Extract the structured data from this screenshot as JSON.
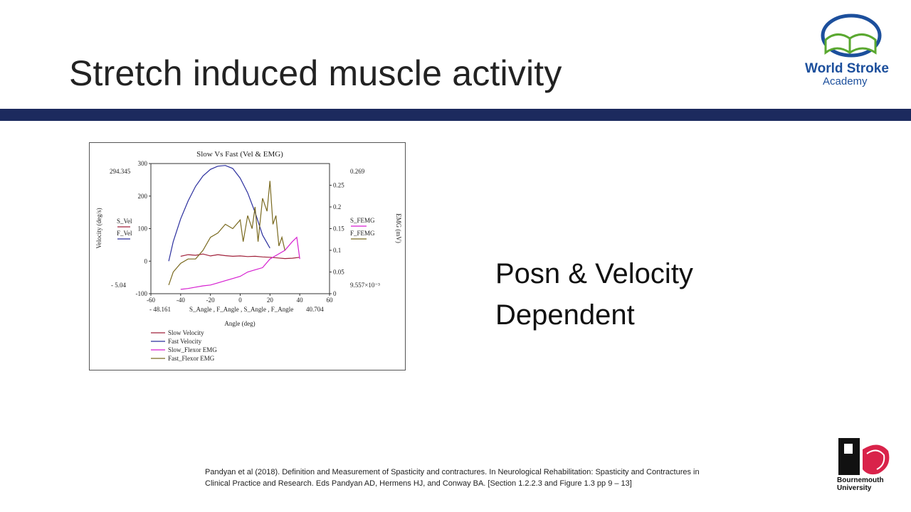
{
  "slide": {
    "title": "Stretch induced muscle activity",
    "side_text_line1": "Posn & Velocity",
    "side_text_line2": "Dependent",
    "citation": "Pandyan et al (2018). Definition and Measurement of Spasticity and contractures. In Neurological Rehabilitation: Spasticity and Contractures in Clinical Practice and Research. Eds Pandyan AD, Hermens HJ, and Conway BA. [Section 1.2.2.3 and Figure 1.3 pp 9 – 13]"
  },
  "logos": {
    "wsa_line1": "World Stroke",
    "wsa_line2": "Academy",
    "bu_line1": "Bournemouth",
    "bu_line2": "University"
  },
  "colors": {
    "divider": "#1c2a5e",
    "slow_velocity": "#a0203a",
    "fast_velocity": "#2b2f9e",
    "slow_emg": "#d61fd0",
    "fast_emg": "#7a6a20"
  },
  "chart_data": {
    "type": "line",
    "title": "Slow Vs Fast (Vel & EMG)",
    "xlabel": "Angle (deg)",
    "x_var_label": "S_Angle , F_Angle , S_Angle , F_Angle",
    "ylabel": "Velocity (deg/s)",
    "y2label": "EMG (mV)",
    "xlim": [
      -60,
      60
    ],
    "ylim": [
      -100,
      300
    ],
    "y2lim": [
      0,
      0.3
    ],
    "xticks": [
      "-60",
      "-40",
      "-20",
      "0",
      "20",
      "40",
      "60"
    ],
    "yticks": [
      "-100",
      "0",
      "100",
      "200",
      "300"
    ],
    "y2ticks": [
      "0",
      "0.05",
      "0.1",
      "0.15",
      "0.2",
      "0.25"
    ],
    "annotations": {
      "y_max": "294.345",
      "y_min": "- 5.04",
      "x_min": "- 48.161",
      "x_max": "40.704",
      "y2_max": "0.269",
      "y2_min": "9.557×10⁻³",
      "left_var1": "S_Vel",
      "left_var2": "F_Vel",
      "right_var1": "S_FEMG",
      "right_var2": "F_FEMG"
    },
    "legend": [
      "Slow Velocity",
      "Fast Velocity",
      "Slow_Flexor EMG",
      "Fast_Flexor EMG"
    ],
    "legend_position": "bottom-left",
    "series": [
      {
        "name": "Slow Velocity",
        "axis": "left",
        "x": [
          -40,
          -35,
          -30,
          -25,
          -20,
          -15,
          -10,
          -5,
          0,
          5,
          10,
          15,
          20,
          25,
          30,
          35,
          40
        ],
        "y": [
          15,
          20,
          18,
          22,
          16,
          20,
          17,
          15,
          16,
          14,
          15,
          13,
          12,
          10,
          8,
          9,
          12
        ]
      },
      {
        "name": "Fast Velocity",
        "axis": "left",
        "x": [
          -48,
          -45,
          -40,
          -35,
          -30,
          -25,
          -20,
          -15,
          -10,
          -5,
          0,
          5,
          10,
          15,
          20
        ],
        "y": [
          0,
          60,
          130,
          185,
          230,
          262,
          282,
          292,
          294,
          285,
          255,
          210,
          150,
          80,
          40
        ]
      },
      {
        "name": "Slow_Flexor EMG",
        "axis": "right",
        "x": [
          -40,
          -35,
          -30,
          -25,
          -20,
          -15,
          -10,
          -5,
          0,
          5,
          10,
          15,
          20,
          25,
          30,
          35,
          38,
          40
        ],
        "y": [
          0.01,
          0.012,
          0.015,
          0.018,
          0.02,
          0.025,
          0.03,
          0.035,
          0.04,
          0.05,
          0.055,
          0.06,
          0.08,
          0.09,
          0.1,
          0.12,
          0.13,
          0.08
        ]
      },
      {
        "name": "Fast_Flexor EMG",
        "axis": "right",
        "x": [
          -48,
          -45,
          -40,
          -35,
          -30,
          -25,
          -20,
          -15,
          -10,
          -5,
          0,
          2,
          5,
          8,
          10,
          12,
          15,
          18,
          20,
          22,
          24,
          26,
          28,
          30
        ],
        "y": [
          0.02,
          0.05,
          0.07,
          0.08,
          0.08,
          0.1,
          0.13,
          0.14,
          0.16,
          0.15,
          0.17,
          0.12,
          0.18,
          0.15,
          0.2,
          0.12,
          0.22,
          0.19,
          0.26,
          0.16,
          0.18,
          0.11,
          0.13,
          0.1
        ]
      }
    ]
  }
}
